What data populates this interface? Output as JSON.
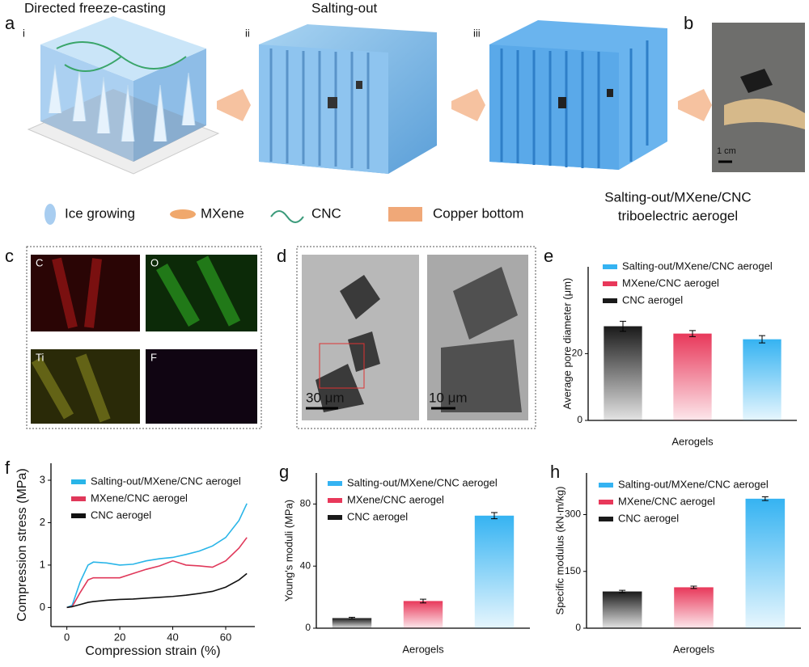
{
  "illustration": {
    "label": "a",
    "steps": [
      {
        "num": "i",
        "title": "Directed freeze-casting"
      },
      {
        "num": "ii",
        "title": "Salting-out"
      },
      {
        "num": "iii"
      }
    ],
    "legend": [
      "Ice growing",
      "MXene",
      "CNC",
      "Copper bottom"
    ]
  },
  "photo": {
    "label": "b",
    "scale": "1 cm",
    "caption": [
      "Salting-out/MXene/CNC",
      "triboelectric aerogel"
    ]
  },
  "eds": {
    "label": "c",
    "maps": [
      "C",
      "O",
      "Ti",
      "F"
    ]
  },
  "sem": {
    "label": "d",
    "scales": [
      "30 μm",
      "10 μm"
    ]
  },
  "chart_data": [
    {
      "type": "bar",
      "label": "e",
      "xlabel": "Aerogels",
      "ylabel": "Average pore diameter (μm)",
      "ylim": [
        0,
        46
      ],
      "yticks": [
        0,
        20
      ],
      "series": [
        {
          "name": "Salting-out/MXene/CNC aerogel",
          "color": "#35b3f2",
          "values": [
            24.3
          ],
          "errors": [
            1.1
          ]
        },
        {
          "name": "MXene/CNC aerogel",
          "color": "#e8385a",
          "values": [
            26
          ],
          "errors": [
            0.9
          ]
        },
        {
          "name": "CNC aerogel",
          "color": "#1a1a1a",
          "values": [
            28.2
          ],
          "errors": [
            1.5
          ]
        }
      ]
    },
    {
      "type": "line",
      "label": "f",
      "xlabel": "Compression strain (%)",
      "ylabel": "Compression stress (MPa)",
      "xlim": [
        -6,
        71
      ],
      "xticks": [
        0,
        20,
        40,
        60
      ],
      "ylim": [
        -0.45,
        3.4
      ],
      "yticks": [
        0,
        1,
        2,
        3
      ],
      "x": [
        0,
        2,
        5,
        8,
        10,
        15,
        20,
        25,
        30,
        35,
        40,
        45,
        50,
        55,
        60,
        65,
        68
      ],
      "series": [
        {
          "name": "Salting-out/MXene/CNC aerogel",
          "color": "#29b5e8",
          "values": [
            0,
            0.05,
            0.6,
            1.0,
            1.07,
            1.05,
            1.0,
            1.02,
            1.1,
            1.15,
            1.18,
            1.25,
            1.33,
            1.45,
            1.65,
            2.05,
            2.45
          ]
        },
        {
          "name": "MXene/CNC aerogel",
          "color": "#e0385a",
          "values": [
            0,
            0.02,
            0.35,
            0.65,
            0.7,
            0.7,
            0.7,
            0.8,
            0.9,
            0.98,
            1.1,
            1.0,
            0.98,
            0.95,
            1.1,
            1.4,
            1.65
          ]
        },
        {
          "name": "CNC aerogel",
          "color": "#111111",
          "values": [
            0,
            0.02,
            0.07,
            0.12,
            0.14,
            0.17,
            0.19,
            0.2,
            0.22,
            0.24,
            0.26,
            0.29,
            0.33,
            0.38,
            0.48,
            0.65,
            0.8
          ]
        }
      ]
    },
    {
      "type": "bar",
      "label": "g",
      "xlabel": "Aerogels",
      "ylabel": "Young's moduli (MPa)",
      "ylim": [
        0,
        100
      ],
      "yticks": [
        0,
        40,
        80
      ],
      "series": [
        {
          "name": "Salting-out/MXene/CNC aerogel",
          "color": "#35b3f2",
          "values": [
            72.5
          ],
          "errors": [
            2
          ]
        },
        {
          "name": "MXene/CNC aerogel",
          "color": "#e8385a",
          "values": [
            17.5
          ],
          "errors": [
            1.2
          ]
        },
        {
          "name": "CNC aerogel",
          "color": "#1a1a1a",
          "values": [
            6.5
          ],
          "errors": [
            0.5
          ]
        }
      ]
    },
    {
      "type": "bar",
      "label": "h",
      "xlabel": "Aerogels",
      "ylabel": "Specific modulus (kN·m/kg)",
      "ylim": [
        0,
        410
      ],
      "yticks": [
        0,
        150,
        300
      ],
      "series": [
        {
          "name": "Salting-out/MXene/CNC aerogel",
          "color": "#35b3f2",
          "values": [
            342
          ],
          "errors": [
            5
          ]
        },
        {
          "name": "MXene/CNC aerogel",
          "color": "#e8385a",
          "values": [
            108
          ],
          "errors": [
            3
          ]
        },
        {
          "name": "CNC aerogel",
          "color": "#1a1a1a",
          "values": [
            97
          ],
          "errors": [
            3
          ]
        }
      ]
    }
  ]
}
